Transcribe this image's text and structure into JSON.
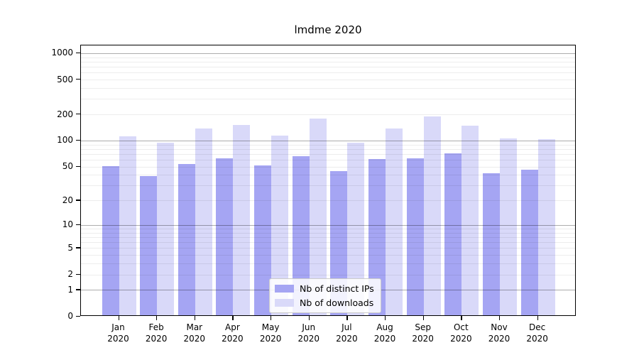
{
  "title": "lmdme 2020",
  "chart_data": {
    "type": "bar",
    "title": "lmdme 2020",
    "categories": [
      {
        "month": "Jan",
        "year": "2020"
      },
      {
        "month": "Feb",
        "year": "2020"
      },
      {
        "month": "Mar",
        "year": "2020"
      },
      {
        "month": "Apr",
        "year": "2020"
      },
      {
        "month": "May",
        "year": "2020"
      },
      {
        "month": "Jun",
        "year": "2020"
      },
      {
        "month": "Jul",
        "year": "2020"
      },
      {
        "month": "Aug",
        "year": "2020"
      },
      {
        "month": "Sep",
        "year": "2020"
      },
      {
        "month": "Oct",
        "year": "2020"
      },
      {
        "month": "Nov",
        "year": "2020"
      },
      {
        "month": "Dec",
        "year": "2020"
      }
    ],
    "series": [
      {
        "name": "Nb of distinct IPs",
        "color": "#a5a5f3",
        "values": [
          51,
          39,
          54,
          62,
          52,
          66,
          44,
          61,
          62,
          71,
          42,
          46
        ]
      },
      {
        "name": "Nb of downloads",
        "color": "#d9d9f9",
        "values": [
          112,
          94,
          137,
          151,
          115,
          179,
          94,
          137,
          189,
          148,
          105,
          104
        ]
      }
    ],
    "y_ticks": [
      0,
      1,
      2,
      5,
      10,
      20,
      50,
      100,
      200,
      500,
      1000
    ],
    "y_minor_gridlines": [
      2,
      3,
      4,
      5,
      6,
      7,
      8,
      9,
      20,
      30,
      40,
      50,
      60,
      70,
      80,
      90,
      200,
      300,
      400,
      500,
      600,
      700,
      800,
      900
    ],
    "y_major_gridlines": [
      1,
      10,
      100,
      1000
    ],
    "y_scale": "log10(1+y)",
    "ylim": [
      0,
      1220
    ],
    "xlabel": "",
    "ylabel": "",
    "grid": "horizontal major+minor, drawn over bars",
    "legend_position": "bottom-center"
  }
}
